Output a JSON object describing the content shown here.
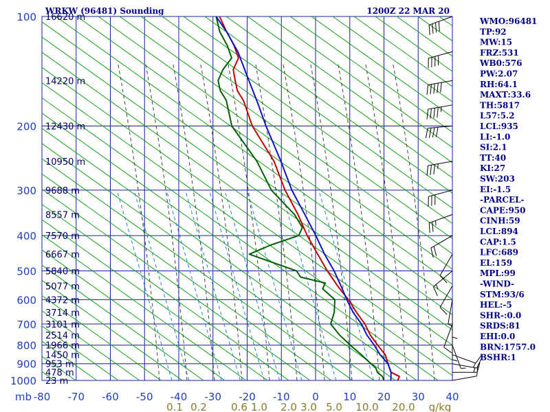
{
  "header": {
    "station": "WRKW (96481) Sounding",
    "time": "1200Z 22 MAR 20"
  },
  "chart_data": {
    "type": "line",
    "chart_kind": "skew-t log-p sounding",
    "y_axis": {
      "scale": "log",
      "unit_label": "mb",
      "range": [
        1000,
        100
      ],
      "ticks": [
        100,
        200,
        300,
        400,
        500,
        600,
        700,
        800,
        900,
        1000
      ],
      "tick_labels": [
        "100",
        "200",
        "300",
        "400",
        "500",
        "600",
        "700",
        "800",
        "900",
        "1000"
      ]
    },
    "x_axis": {
      "range": [
        -80,
        40
      ],
      "ticks": [
        -80,
        -70,
        -60,
        -50,
        -40,
        -30,
        -20,
        -10,
        0,
        10,
        20,
        30,
        40
      ],
      "tick_labels": [
        "-80",
        "-70",
        "-60",
        "-50",
        "-40",
        "-30",
        "-20",
        "-10",
        "0",
        "10",
        "20",
        "30",
        "40"
      ]
    },
    "mixing_ratio_labels": [
      "0.1",
      "0.2",
      "0.6",
      "1.0",
      "2.0",
      "3.0",
      "5.0",
      "10.0",
      "20.0",
      "g/kg"
    ],
    "mixing_ratios": [
      0.1,
      0.2,
      0.6,
      1.0,
      2.0,
      3.0,
      5.0,
      10.0,
      20.0
    ],
    "height_labels": [
      {
        "p": 100,
        "text": "16620 m"
      },
      {
        "p": 150,
        "text": "14220 m"
      },
      {
        "p": 200,
        "text": "12430 m"
      },
      {
        "p": 250,
        "text": "10950 m"
      },
      {
        "p": 300,
        "text": "9688 m"
      },
      {
        "p": 350,
        "text": "8557 m"
      },
      {
        "p": 400,
        "text": "7570 m"
      },
      {
        "p": 450,
        "text": "6667 m"
      },
      {
        "p": 500,
        "text": "5840 m"
      },
      {
        "p": 550,
        "text": "5077 m"
      },
      {
        "p": 600,
        "text": "4372 m"
      },
      {
        "p": 650,
        "text": "3714 m"
      },
      {
        "p": 700,
        "text": "3101 m"
      },
      {
        "p": 750,
        "text": "2514 m"
      },
      {
        "p": 800,
        "text": "1966 m"
      },
      {
        "p": 850,
        "text": "1450 m"
      },
      {
        "p": 900,
        "text": "953 m"
      },
      {
        "p": 950,
        "text": "478 m"
      },
      {
        "p": 1000,
        "text": "23 m"
      }
    ],
    "series": [
      {
        "role": "temperature",
        "color": "#c00000",
        "points": [
          [
            1000,
            24
          ],
          [
            975,
            24
          ],
          [
            950,
            21
          ],
          [
            925,
            20
          ],
          [
            900,
            19
          ],
          [
            850,
            17
          ],
          [
            800,
            13.5
          ],
          [
            750,
            10
          ],
          [
            700,
            7
          ],
          [
            650,
            3
          ],
          [
            600,
            -1
          ],
          [
            570,
            -4
          ],
          [
            550,
            -6
          ],
          [
            500,
            -11
          ],
          [
            450,
            -16
          ],
          [
            400,
            -21.5
          ],
          [
            350,
            -27
          ],
          [
            300,
            -34
          ],
          [
            250,
            -41
          ],
          [
            200,
            -52
          ],
          [
            170,
            -58
          ],
          [
            160,
            -61
          ],
          [
            150,
            -63
          ],
          [
            140,
            -65
          ],
          [
            130,
            -65
          ],
          [
            120,
            -68
          ],
          [
            110,
            -72
          ],
          [
            100,
            -76
          ]
        ]
      },
      {
        "role": "dewpoint",
        "color": "#006000",
        "points": [
          [
            1000,
            20
          ],
          [
            975,
            19
          ],
          [
            950,
            17
          ],
          [
            925,
            16
          ],
          [
            900,
            14
          ],
          [
            850,
            10
          ],
          [
            800,
            5.5
          ],
          [
            750,
            1
          ],
          [
            700,
            -3
          ],
          [
            650,
            -3.5
          ],
          [
            600,
            -5
          ],
          [
            560,
            -10
          ],
          [
            540,
            -10
          ],
          [
            520,
            -18
          ],
          [
            500,
            -20
          ],
          [
            450,
            -36
          ],
          [
            425,
            -31
          ],
          [
            400,
            -24
          ],
          [
            380,
            -24
          ],
          [
            350,
            -28
          ],
          [
            300,
            -38
          ],
          [
            250,
            -46
          ],
          [
            200,
            -58
          ],
          [
            170,
            -63
          ],
          [
            160,
            -66
          ],
          [
            150,
            -68
          ],
          [
            140,
            -68
          ],
          [
            130,
            -67
          ],
          [
            120,
            -70
          ],
          [
            110,
            -74
          ],
          [
            100,
            -77
          ]
        ]
      },
      {
        "role": "parcel",
        "color": "#1010c0",
        "points": [
          [
            1000,
            22
          ],
          [
            950,
            21
          ],
          [
            900,
            19
          ],
          [
            850,
            15.5
          ],
          [
            800,
            12.5
          ],
          [
            750,
            9
          ],
          [
            700,
            6
          ],
          [
            650,
            2
          ],
          [
            600,
            -1.5
          ],
          [
            550,
            -5
          ],
          [
            500,
            -9
          ],
          [
            450,
            -14
          ],
          [
            400,
            -19
          ],
          [
            350,
            -25
          ],
          [
            300,
            -32
          ],
          [
            250,
            -39
          ],
          [
            200,
            -48
          ],
          [
            175,
            -53
          ],
          [
            150,
            -59
          ],
          [
            125,
            -66
          ],
          [
            110,
            -72
          ],
          [
            100,
            -77
          ]
        ]
      }
    ],
    "wind_barbs": [
      {
        "p": 100,
        "dir": 250,
        "spd": 40
      },
      {
        "p": 125,
        "dir": 255,
        "spd": 40
      },
      {
        "p": 150,
        "dir": 260,
        "spd": 50
      },
      {
        "p": 175,
        "dir": 260,
        "spd": 45
      },
      {
        "p": 200,
        "dir": 265,
        "spd": 40
      },
      {
        "p": 250,
        "dir": 260,
        "spd": 35
      },
      {
        "p": 300,
        "dir": 255,
        "spd": 30
      },
      {
        "p": 350,
        "dir": 250,
        "spd": 25
      },
      {
        "p": 400,
        "dir": 240,
        "spd": 20
      },
      {
        "p": 450,
        "dir": 210,
        "spd": 10
      },
      {
        "p": 500,
        "dir": 230,
        "spd": 15
      },
      {
        "p": 550,
        "dir": 210,
        "spd": 10
      },
      {
        "p": 600,
        "dir": 190,
        "spd": 5
      },
      {
        "p": 650,
        "dir": 180,
        "spd": 5
      },
      {
        "p": 700,
        "dir": 200,
        "spd": 10
      },
      {
        "p": 750,
        "dir": 180,
        "spd": 5
      },
      {
        "p": 800,
        "dir": 160,
        "spd": 5
      },
      {
        "p": 850,
        "dir": 110,
        "spd": 10
      },
      {
        "p": 900,
        "dir": 100,
        "spd": 15
      },
      {
        "p": 950,
        "dir": 90,
        "spd": 15
      },
      {
        "p": 1000,
        "dir": 80,
        "spd": 10
      }
    ]
  },
  "indices": [
    "WMO:96481",
    "TP:92",
    "MW:15",
    "FRZ:531",
    "WB0:576",
    "PW:2.07",
    "RH:64.1",
    "MAXT:33.6",
    "TH:5817",
    "L57:5.2",
    "LCL:935",
    "LI:-1.0",
    "SI:2.1",
    "TT:40",
    "KI:27",
    "SW:203",
    "EI:-1.5",
    "-PARCEL-",
    "CAPE:950",
    "CINH:59",
    "LCL:894",
    "CAP:1.5",
    "LFC:689",
    "EL:159",
    "MPL:99",
    "-WIND-",
    "STM:93/6",
    "HEL:-5",
    "SHR-:0.0",
    "SRDS:81",
    "EHI:0.0",
    "BRN:1757.0",
    "BSHR:1"
  ],
  "colors": {
    "grid": "#1020a0",
    "dry_adiabat": "#10a010",
    "moist_adiabat": "#404040",
    "mixing_ratio": "#2080d0",
    "barb": "#000000"
  }
}
